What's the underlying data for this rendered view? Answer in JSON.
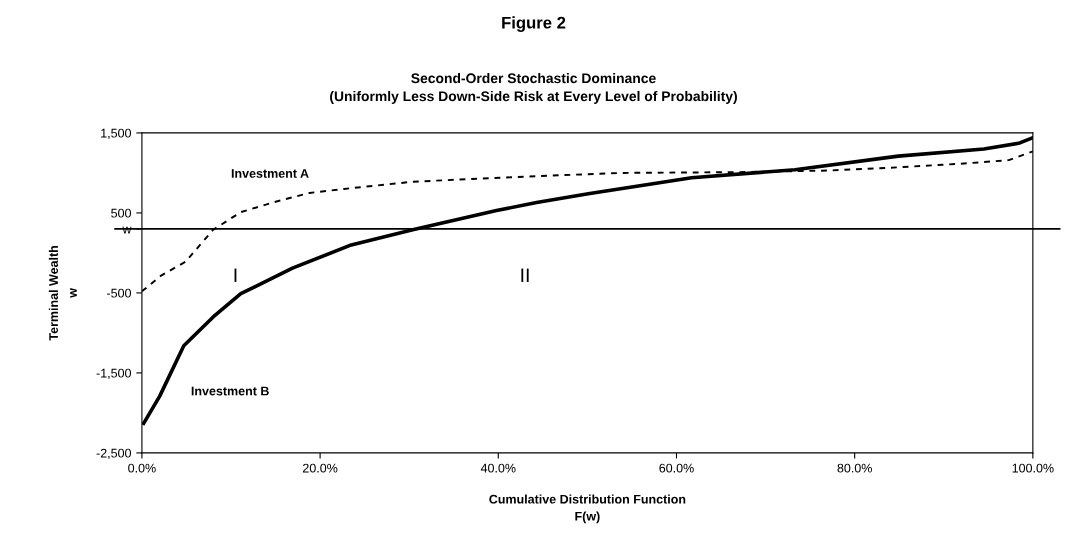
{
  "chart_data": {
    "type": "line",
    "title": "Figure 2",
    "subtitle": "Second-Order Stochastic Dominance\n(Uniformly Less Down-Side Risk at Every Level of Probability)",
    "xlabel": "Cumulative Distribution Function\nF(w)",
    "ylabel": "Terminal Wealth\nw",
    "series": [
      {
        "name": "Investment A",
        "color": "#000000",
        "line_style": "dashed",
        "x": [
          0,
          2.2,
          4.9,
          8.0,
          11.1,
          15.0,
          18.8,
          22.7,
          30.4,
          38.2,
          44.3,
          53.9,
          67.1,
          77.1,
          84.9,
          92.6,
          97.3,
          100
        ],
        "values": [
          -480,
          -280,
          -110,
          290,
          510,
          640,
          750,
          800,
          890,
          930,
          960,
          1000,
          1010,
          1030,
          1070,
          1120,
          1160,
          1270
        ]
      },
      {
        "name": "Investment B",
        "color": "#000000",
        "line_style": "solid",
        "x": [
          0.2,
          2.0,
          4.7,
          8.0,
          11.1,
          16.9,
          23.5,
          30.4,
          39.8,
          44.3,
          50.1,
          61.7,
          73.3,
          84.9,
          94.5,
          98.4,
          100
        ],
        "values": [
          -2130,
          -1790,
          -1160,
          -800,
          -510,
          -190,
          100,
          290,
          530,
          630,
          740,
          940,
          1040,
          1210,
          1300,
          1370,
          1440
        ]
      }
    ],
    "xlim": [
      0,
      100
    ],
    "xticks": [
      {
        "value": 0,
        "label": "0.0%"
      },
      {
        "value": 20,
        "label": "20.0%"
      },
      {
        "value": 40,
        "label": "40.0%"
      },
      {
        "value": 60,
        "label": "60.0%"
      },
      {
        "value": 80,
        "label": "80.0%"
      },
      {
        "value": 100,
        "label": "100.0%"
      }
    ],
    "ylim": [
      -2500,
      1500
    ],
    "yticks": [
      {
        "value": -2500,
        "label": "-2,500"
      },
      {
        "value": -1500,
        "label": "-1,500"
      },
      {
        "value": -500,
        "label": "-500"
      },
      {
        "value": 300,
        "label": "w"
      },
      {
        "value": 500,
        "label": "500"
      },
      {
        "value": 1500,
        "label": "1,500"
      }
    ],
    "ref_lines": [
      {
        "axis": "y",
        "value": 300,
        "color": "#000000"
      }
    ],
    "annotations": [
      "I",
      "II"
    ],
    "grid": false,
    "legend": false,
    "marker": "none"
  }
}
